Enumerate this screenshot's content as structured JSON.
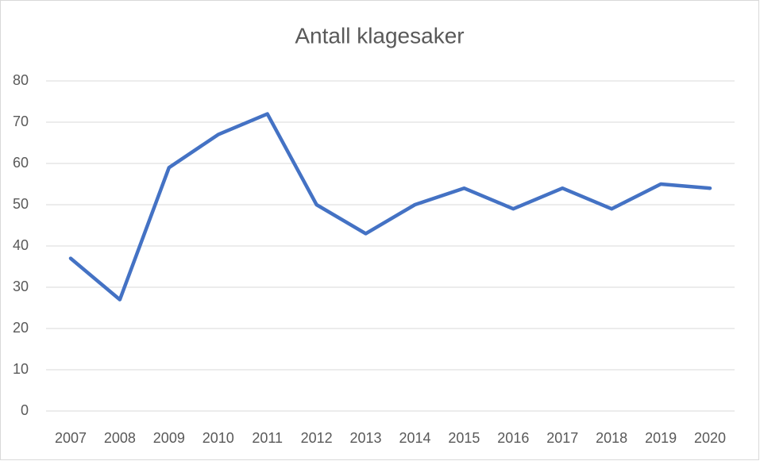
{
  "chart_data": {
    "type": "line",
    "title": "Antall klagesaker",
    "categories": [
      "2007",
      "2008",
      "2009",
      "2010",
      "2011",
      "2012",
      "2013",
      "2014",
      "2015",
      "2016",
      "2017",
      "2018",
      "2019",
      "2020"
    ],
    "values": [
      37,
      27,
      59,
      67,
      72,
      50,
      43,
      50,
      54,
      49,
      54,
      49,
      55,
      54
    ],
    "color": "#4472c4",
    "ylim": [
      0,
      80
    ],
    "yticks": [
      0,
      10,
      20,
      30,
      40,
      50,
      60,
      70,
      80
    ],
    "grid": true
  }
}
